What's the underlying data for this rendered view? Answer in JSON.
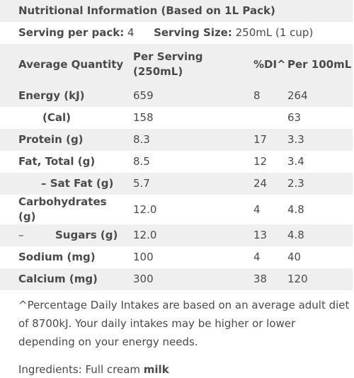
{
  "title": "Nutritional Information (Based on 1L Pack)",
  "serving": {
    "per_pack_label": "Serving per pack:",
    "per_pack_value": "4",
    "size_label": "Serving Size:",
    "size_value": "250mL (1 cup)"
  },
  "headers": {
    "quantity": "Average Quantity",
    "per_serving": "Per Serving (250mL)",
    "di": "%DI^",
    "per_100": "Per 100mL"
  },
  "rows": [
    {
      "label": "Energy (kJ)",
      "serving": "659",
      "di": "8",
      "per100": "264"
    },
    {
      "label": "(Cal)",
      "serving": "158",
      "di": "",
      "per100": "63"
    },
    {
      "label": "Protein (g)",
      "serving": "8.3",
      "di": "17",
      "per100": "3.3"
    },
    {
      "label": "Fat, Total (g)",
      "serving": "8.5",
      "di": "12",
      "per100": "3.4"
    },
    {
      "label": "– Sat Fat (g)",
      "serving": "5.7",
      "di": "24",
      "per100": "2.3"
    },
    {
      "label": "Carbohydrates (g)",
      "serving": "12.0",
      "di": "4",
      "per100": "4.8"
    },
    {
      "dash": "–",
      "label": "Sugars (g)",
      "serving": "12.0",
      "di": "13",
      "per100": "4.8"
    },
    {
      "label": "Sodium (mg)",
      "serving": "100",
      "di": "4",
      "per100": "40"
    },
    {
      "label": "Calcium (mg)",
      "serving": "300",
      "di": "38",
      "per100": "120"
    }
  ],
  "footnote": "^Percentage Daily Intakes are based on an average adult diet of 8700kJ. Your daily intakes may be higher or lower depending on your energy needs.",
  "ingredients": {
    "label": "Ingredients: Full cream",
    "bold": "milk"
  }
}
